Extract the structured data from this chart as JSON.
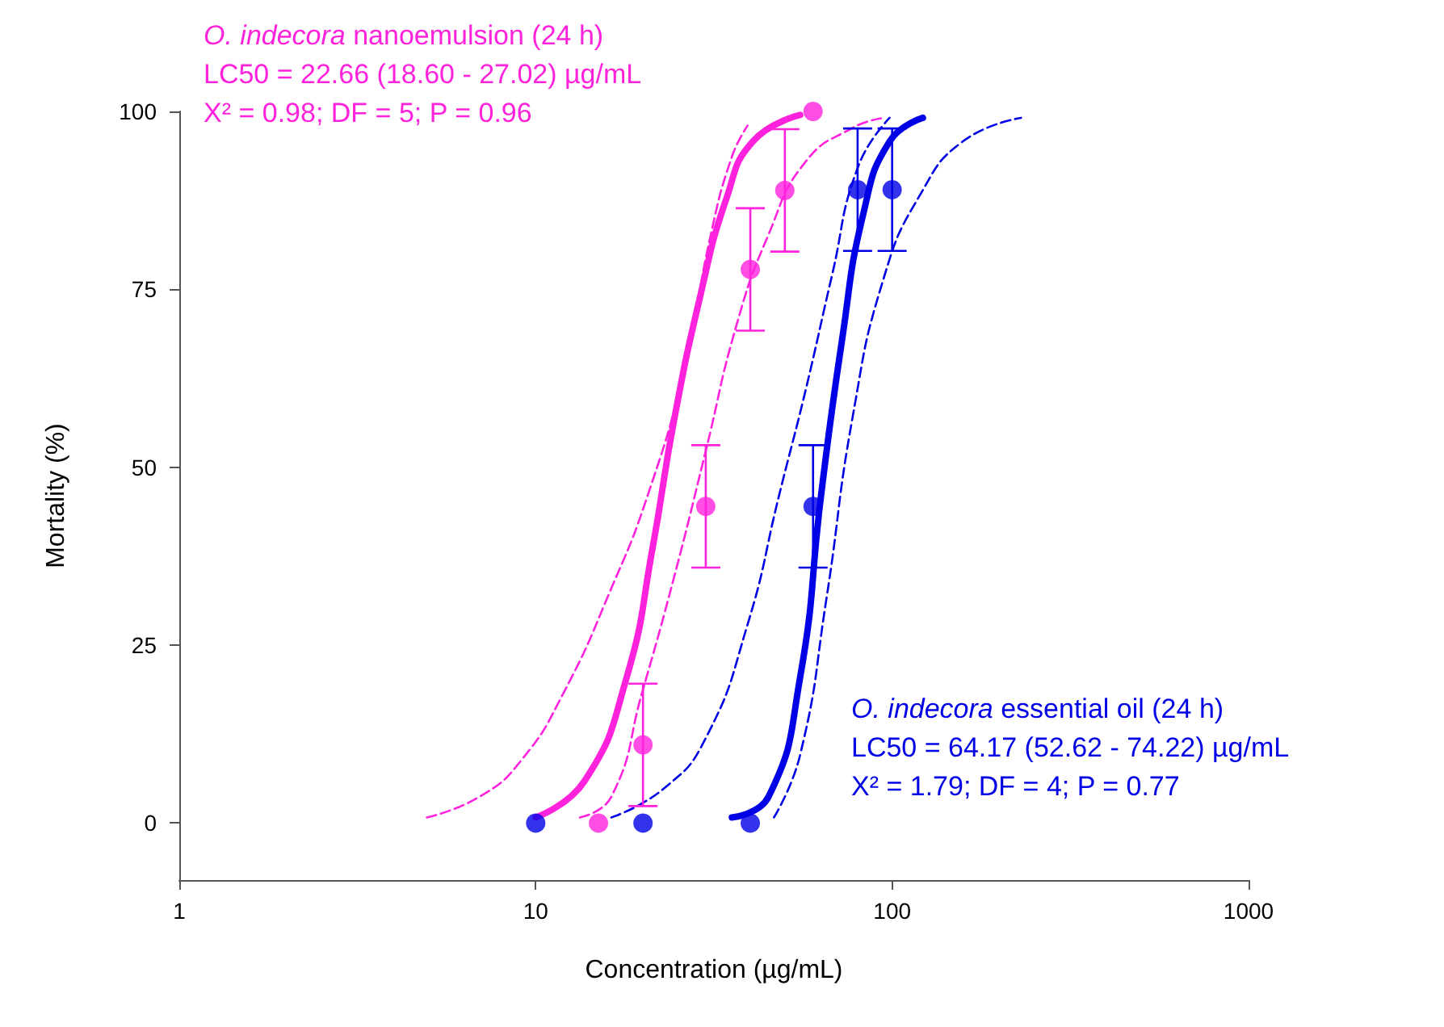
{
  "chart_data": {
    "type": "scatter",
    "xlabel": "Concentration (µg/mL)",
    "ylabel": "Mortality (%)",
    "log": "x",
    "grid": false,
    "xlim": [
      1,
      1000
    ],
    "xticks": [
      1,
      10,
      100,
      1000
    ],
    "ylim": [
      -8,
      100
    ],
    "yticks": [
      0,
      25,
      50,
      75,
      100
    ],
    "annotations": [
      "O. indecora nanoemulsion (24 h)\nLC50 = 22.66 (18.60 - 27.02) µg/mL\nX² = 0.98; DF = 5; P = 0.96",
      "O. indecora essential oil (24 h)\nLC50 = 64.17 (52.62 - 74.22) µg/mL\nX² = 1.79; DF = 4; P = 0.77"
    ],
    "series": [
      {
        "color": "#ff22dd",
        "marker": "circle",
        "x": [
          15,
          20,
          30,
          40,
          50,
          60
        ],
        "values": [
          0,
          11,
          44.5,
          77.8,
          88.9,
          100
        ],
        "errors": [
          null,
          8.6,
          8.6,
          8.6,
          8.6,
          null
        ]
      },
      {
        "color": "#0000e6",
        "marker": "circle",
        "x": [
          10,
          20,
          40,
          60,
          80,
          100
        ],
        "values": [
          0,
          0,
          0,
          44.5,
          89,
          89
        ],
        "errors": [
          null,
          null,
          null,
          8.6,
          8.6,
          8.6
        ]
      },
      {
        "type": "line",
        "color": "#ff22dd",
        "marker": "none",
        "line_style": "solid",
        "x": [
          10,
          13.7,
          18,
          21.3,
          24.4,
          28.9,
          34.3,
          40.7,
          55.2
        ],
        "values": [
          0.8,
          5.9,
          20.5,
          38.8,
          56.4,
          73.9,
          87.8,
          95.8,
          99.5
        ]
      },
      {
        "type": "line",
        "color": "#ff22dd",
        "marker": "none",
        "line_style": "dashed",
        "x": [
          4.95,
          6.95,
          9.1,
          12,
          16.3,
          20.6,
          26.1,
          31,
          35.5,
          39.3
        ],
        "values": [
          0.8,
          3.7,
          8.8,
          18.4,
          33,
          46,
          63.7,
          82.7,
          93.6,
          98
        ]
      },
      {
        "type": "line",
        "color": "#ff22dd",
        "marker": "none",
        "line_style": "dashed",
        "x": [
          13.3,
          16.3,
          19.9,
          24.4,
          29.9,
          36.7,
          45,
          57.1,
          77.5,
          95
        ],
        "values": [
          0.8,
          3.7,
          18.4,
          34.4,
          52,
          70.2,
          82.7,
          92.9,
          97.7,
          99.1
        ]
      },
      {
        "type": "line",
        "color": "#0000e6",
        "marker": "none",
        "line_style": "solid",
        "x": [
          35.5,
          45,
          55.2,
          63.2,
          72.4,
          83,
          98.4,
          122
        ],
        "values": [
          0.8,
          3.7,
          20.5,
          46.1,
          68,
          85.6,
          95.8,
          99.1
        ]
      },
      {
        "type": "line",
        "color": "#0000e6",
        "marker": "none",
        "line_style": "dashed",
        "x": [
          16.3,
          22.8,
          29.9,
          39.3,
          48.2,
          57.1,
          67.7,
          80.2,
          98.4
        ],
        "values": [
          0.8,
          4.8,
          11.8,
          27.9,
          46.1,
          60.7,
          76.8,
          92.2,
          99.1
        ]
      },
      {
        "type": "line",
        "color": "#0000e6",
        "marker": "none",
        "line_style": "dashed",
        "x": [
          46.6,
          55.2,
          65.4,
          77.5,
          95,
          120.5,
          158,
          230
        ],
        "values": [
          0.8,
          9.6,
          31.5,
          57.1,
          76.8,
          88.5,
          95.8,
          99.1
        ]
      }
    ]
  }
}
